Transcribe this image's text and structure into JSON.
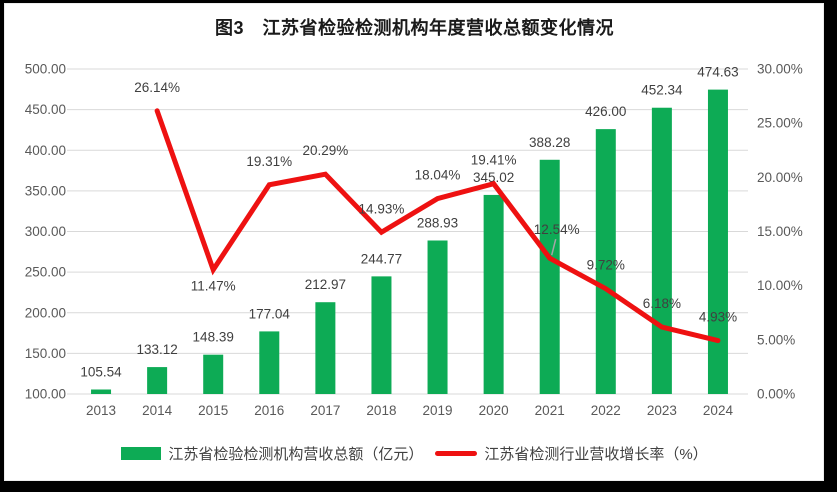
{
  "title": "图3　江苏省检验检测机构年度营收总额变化情况",
  "chart_data": {
    "type": "bar+line combo",
    "categories": [
      "2013",
      "2014",
      "2015",
      "2016",
      "2017",
      "2018",
      "2019",
      "2020",
      "2021",
      "2022",
      "2023",
      "2024"
    ],
    "series": [
      {
        "name": "江苏省检验检测机构营收总额（亿元）",
        "type": "bar",
        "axis": "left",
        "color": "#0DAB55",
        "values": [
          105.54,
          133.12,
          148.39,
          177.04,
          212.97,
          244.77,
          288.93,
          345.02,
          388.28,
          426.0,
          452.34,
          474.63
        ],
        "labels": [
          "105.54",
          "133.12",
          "148.39",
          "177.04",
          "212.97",
          "244.77",
          "288.93",
          "345.02",
          "388.28",
          "426.00",
          "452.34",
          "474.63"
        ]
      },
      {
        "name": "江苏省检测行业营收增长率（%）",
        "type": "line",
        "axis": "right",
        "color": "#EE1111",
        "values": [
          null,
          26.14,
          11.47,
          19.31,
          20.29,
          14.93,
          18.04,
          19.41,
          12.54,
          9.72,
          6.18,
          4.93
        ],
        "labels": [
          "",
          "26.14%",
          "11.47%",
          "19.31%",
          "20.29%",
          "14.93%",
          "18.04%",
          "19.41%",
          "12.54%",
          "9.72%",
          "6.18%",
          "4.93%"
        ],
        "label_positions": [
          null,
          "above",
          "below",
          "above",
          "above",
          "above",
          "above",
          "above",
          "above-leader",
          "above",
          "above",
          "above"
        ],
        "label_dx": [
          0,
          0,
          0,
          0,
          0,
          0,
          0,
          0,
          7,
          0,
          0,
          0
        ]
      }
    ],
    "y_left": {
      "min": 100,
      "max": 500,
      "step": 50,
      "ticks": [
        "500.00",
        "450.00",
        "400.00",
        "350.00",
        "300.00",
        "250.00",
        "200.00",
        "150.00",
        "100.00"
      ]
    },
    "y_right": {
      "min": 0,
      "max": 30,
      "step": 5,
      "ticks": [
        "30.00%",
        "25.00%",
        "20.00%",
        "15.00%",
        "10.00%",
        "5.00%",
        "0.00%"
      ]
    },
    "grid": true,
    "legend_position": "bottom"
  },
  "legend": {
    "items": [
      {
        "label": "江苏省检验检测机构营收总额（亿元）",
        "swatch": "bar",
        "color": "#0DAB55"
      },
      {
        "label": "江苏省检测行业营收增长率（%）",
        "swatch": "line",
        "color": "#EE1111"
      }
    ]
  },
  "colors": {
    "bar": "#0DAB55",
    "line": "#EE1111",
    "gridline": "#D9D9D9",
    "axis_text": "#595959",
    "data_label_text": "#404040",
    "leader_line": "#A6A6A6",
    "frame": "#000000",
    "background": "#FFFFFF"
  }
}
